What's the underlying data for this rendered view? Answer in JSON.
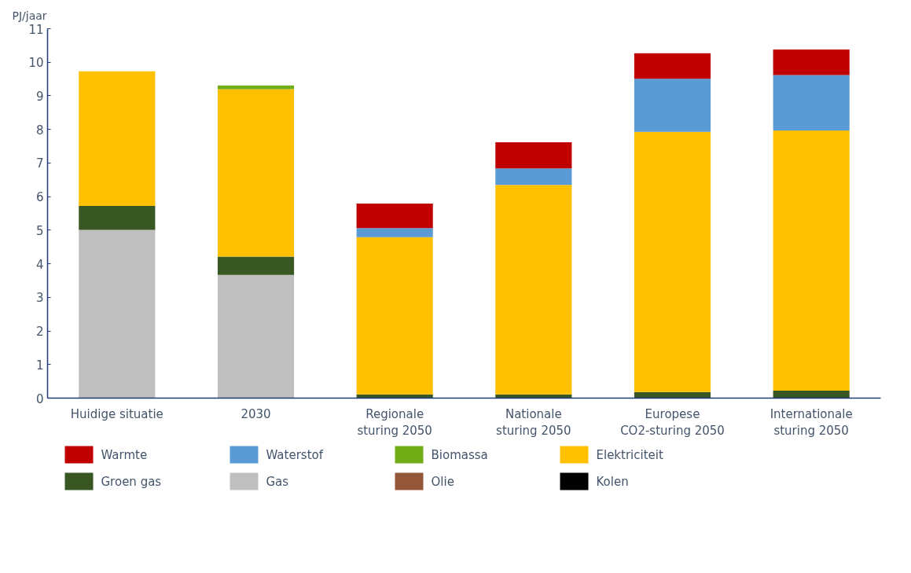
{
  "chart_data": {
    "type": "bar",
    "stacked": true,
    "ylabel": "PJ/jaar",
    "categories": [
      "Huidige situatie",
      "2030",
      "Regionale sturing 2050",
      "Nationale sturing 2050",
      "Europese CO2-sturing 2050",
      "Internationale sturing 2050"
    ],
    "series": [
      {
        "name": "Kolen",
        "color": "#000000",
        "values": [
          0,
          0,
          0,
          0,
          0,
          0
        ]
      },
      {
        "name": "Olie",
        "color": "#945639",
        "values": [
          0,
          0,
          0,
          0,
          0,
          0
        ]
      },
      {
        "name": "Gas",
        "color": "#bfbfbf",
        "values": [
          5.01,
          3.67,
          0,
          0,
          0,
          0
        ]
      },
      {
        "name": "Groen gas",
        "color": "#385723",
        "values": [
          0.71,
          0.54,
          0.11,
          0.11,
          0.18,
          0.22
        ]
      },
      {
        "name": "Elektriciteit",
        "color": "#ffc000",
        "values": [
          4.01,
          4.99,
          4.68,
          6.24,
          7.75,
          7.75
        ]
      },
      {
        "name": "Biomassa",
        "color": "#70ad17",
        "values": [
          0,
          0.11,
          0,
          0,
          0,
          0
        ]
      },
      {
        "name": "Waterstof",
        "color": "#5b9bd5",
        "values": [
          0,
          0,
          0.27,
          0.49,
          1.58,
          1.65
        ]
      },
      {
        "name": "Warmte",
        "color": "#c00000",
        "values": [
          0,
          0,
          0.73,
          0.78,
          0.76,
          0.76
        ]
      }
    ],
    "ylim": [
      0,
      11
    ],
    "yticks": [
      0,
      1,
      2,
      3,
      4,
      5,
      6,
      7,
      8,
      9,
      10,
      11
    ],
    "grid": false,
    "legend": "bottom"
  }
}
